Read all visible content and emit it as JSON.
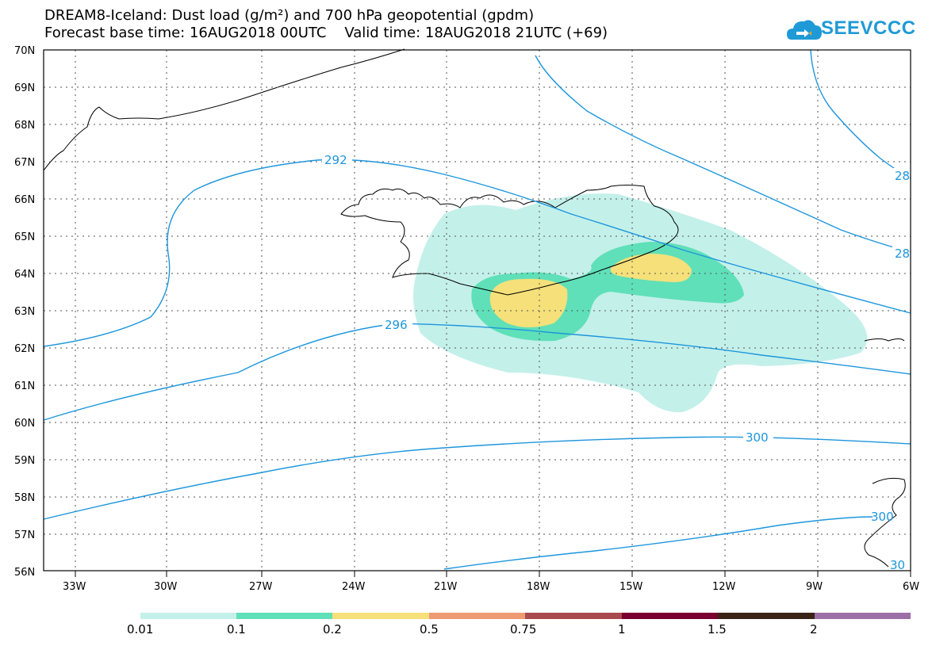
{
  "title": {
    "line1": "DREAM8-Iceland: Dust load (g/m²) and 700 hPa geopotential (gpdm)",
    "line2": "Forecast base time: 16AUG2018 00UTC    Valid time: 18AUG2018 21UTC (+69)"
  },
  "logo": {
    "text": "SEEVCCC",
    "icon": "cloud-icon",
    "color": "#1f9ad6"
  },
  "map": {
    "lat_labels": [
      "70N",
      "69N",
      "68N",
      "67N",
      "66N",
      "65N",
      "64N",
      "63N",
      "62N",
      "61N",
      "60N",
      "59N",
      "58N",
      "57N",
      "56N"
    ],
    "lon_labels": [
      "33W",
      "30W",
      "27W",
      "24W",
      "21W",
      "18W",
      "15W",
      "12W",
      "9W",
      "6W"
    ],
    "contour_labels": [
      "292",
      "296",
      "300",
      "28",
      "28",
      "300",
      "30"
    ],
    "contour_color": "#1c96dc",
    "dust_colors": [
      "#c4f0ea",
      "#5fe0b8",
      "#f5e07a"
    ]
  },
  "colorbar": {
    "labels": [
      "0.01",
      "0.1",
      "0.2",
      "0.5",
      "0.75",
      "1",
      "1.5",
      "2"
    ],
    "colors": [
      "#c4f0ea",
      "#5fe0b8",
      "#f5e07a",
      "#ee9a72",
      "#a84a4e",
      "#7a0030",
      "#3a2418",
      "#9c6fa6"
    ]
  }
}
